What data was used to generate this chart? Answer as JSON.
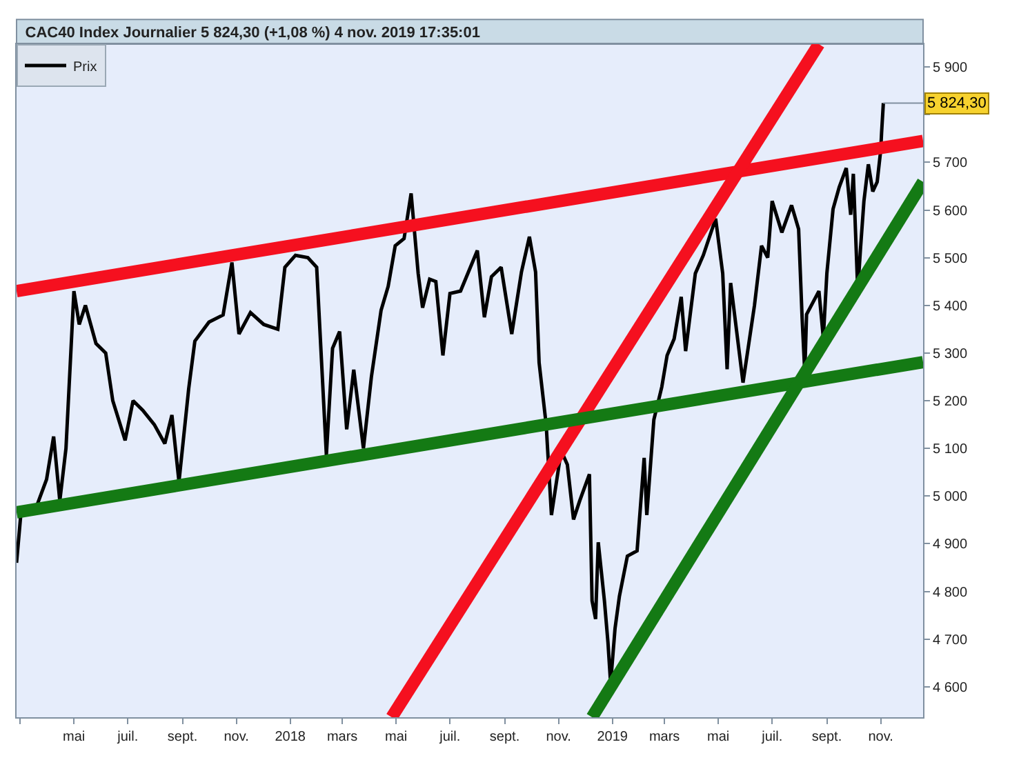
{
  "chart_data": {
    "type": "line",
    "title": "CAC40 Index Journalier 5 824,30 (+1,08 %) 4 nov. 2019 17:35:01",
    "xlim": [
      "2017-02-25",
      "2019-12-19"
    ],
    "ylim": [
      4536,
      5948
    ],
    "xticks": [
      {
        "value": "2017-03-01",
        "label": null
      },
      {
        "value": "2017-05-01",
        "label": "mai"
      },
      {
        "value": "2017-07-01",
        "label": "juil."
      },
      {
        "value": "2017-09-01",
        "label": "sept."
      },
      {
        "value": "2017-11-01",
        "label": "nov."
      },
      {
        "value": "2018-01-01",
        "label": "2018"
      },
      {
        "value": "2018-03-01",
        "label": "mars"
      },
      {
        "value": "2018-05-01",
        "label": "mai"
      },
      {
        "value": "2018-07-01",
        "label": "juil."
      },
      {
        "value": "2018-09-01",
        "label": "sept."
      },
      {
        "value": "2018-11-01",
        "label": "nov."
      },
      {
        "value": "2019-01-01",
        "label": "2019"
      },
      {
        "value": "2019-03-01",
        "label": "mars"
      },
      {
        "value": "2019-05-01",
        "label": "mai"
      },
      {
        "value": "2019-07-01",
        "label": "juil."
      },
      {
        "value": "2019-09-01",
        "label": "sept."
      },
      {
        "value": "2019-11-01",
        "label": "nov."
      }
    ],
    "yticks": [
      {
        "value": 4600,
        "label": "4 600"
      },
      {
        "value": 4700,
        "label": "4 700"
      },
      {
        "value": 4800,
        "label": "4 800"
      },
      {
        "value": 4900,
        "label": "4 900"
      },
      {
        "value": 5000,
        "label": "5 000"
      },
      {
        "value": 5100,
        "label": "5 100"
      },
      {
        "value": 5200,
        "label": "5 200"
      },
      {
        "value": 5300,
        "label": "5 300"
      },
      {
        "value": 5400,
        "label": "5 400"
      },
      {
        "value": 5500,
        "label": "5 500"
      },
      {
        "value": 5600,
        "label": "5 600"
      },
      {
        "value": 5700,
        "label": "5 700"
      },
      {
        "value": 5800,
        "label": null
      },
      {
        "value": 5900,
        "label": "5 900"
      }
    ],
    "grid": false,
    "legend": "top left",
    "marker": "none",
    "line_style": "solid",
    "annotations": [
      {
        "text": "5 824,30",
        "x": "2019-11-04",
        "y": 5824.3
      }
    ],
    "series": [
      {
        "name": "Prix",
        "color": "#000000",
        "x": [
          "2017-02-25",
          "2017-03-02",
          "2017-03-19",
          "2017-03-31",
          "2017-04-08",
          "2017-04-15",
          "2017-04-22",
          "2017-05-01",
          "2017-05-07",
          "2017-05-14",
          "2017-05-26",
          "2017-06-06",
          "2017-06-14",
          "2017-06-28",
          "2017-07-07",
          "2017-07-18",
          "2017-07-31",
          "2017-08-12",
          "2017-08-20",
          "2017-08-28",
          "2017-09-08",
          "2017-09-15",
          "2017-10-01",
          "2017-10-17",
          "2017-10-27",
          "2017-11-04",
          "2017-11-17",
          "2017-12-02",
          "2017-12-18",
          "2017-12-26",
          "2018-01-07",
          "2018-01-21",
          "2018-01-31",
          "2018-02-11",
          "2018-02-18",
          "2018-02-26",
          "2018-03-06",
          "2018-03-14",
          "2018-03-25",
          "2018-04-03",
          "2018-04-14",
          "2018-04-22",
          "2018-04-30",
          "2018-05-10",
          "2018-05-18",
          "2018-05-26",
          "2018-05-31",
          "2018-06-08",
          "2018-06-15",
          "2018-06-23",
          "2018-07-01",
          "2018-07-13",
          "2018-08-01",
          "2018-08-09",
          "2018-08-17",
          "2018-08-28",
          "2018-09-09",
          "2018-09-20",
          "2018-09-29",
          "2018-10-06",
          "2018-10-10",
          "2018-10-18",
          "2018-10-24",
          "2018-11-04",
          "2018-11-11",
          "2018-11-18",
          "2018-11-25",
          "2018-12-06",
          "2018-12-09",
          "2018-12-13",
          "2018-12-16",
          "2018-12-23",
          "2018-12-27",
          "2018-12-30",
          "2019-01-04",
          "2019-01-09",
          "2019-01-18",
          "2019-01-29",
          "2019-02-06",
          "2019-02-09",
          "2019-02-17",
          "2019-02-26",
          "2019-03-04",
          "2019-03-12",
          "2019-03-20",
          "2019-03-25",
          "2019-04-05",
          "2019-04-14",
          "2019-04-28",
          "2019-05-06",
          "2019-05-11",
          "2019-05-15",
          "2019-05-29",
          "2019-06-11",
          "2019-06-19",
          "2019-06-26",
          "2019-07-01",
          "2019-07-12",
          "2019-07-23",
          "2019-07-31",
          "2019-08-04",
          "2019-08-07",
          "2019-08-09",
          "2019-08-23",
          "2019-08-28",
          "2019-09-01",
          "2019-09-08",
          "2019-09-15",
          "2019-09-23",
          "2019-09-28",
          "2019-10-01",
          "2019-10-06",
          "2019-10-09",
          "2019-10-13",
          "2019-10-18",
          "2019-10-23",
          "2019-10-28",
          "2019-11-01",
          "2019-11-02",
          "2019-11-04"
        ],
        "values": [
          4860,
          4965,
          4975,
          5035,
          5125,
          4990,
          5100,
          5430,
          5360,
          5400,
          5320,
          5300,
          5200,
          5117,
          5200,
          5180,
          5150,
          5110,
          5170,
          5030,
          5225,
          5325,
          5365,
          5380,
          5490,
          5340,
          5385,
          5360,
          5350,
          5480,
          5505,
          5500,
          5480,
          5086,
          5310,
          5345,
          5140,
          5265,
          5100,
          5250,
          5390,
          5440,
          5525,
          5540,
          5635,
          5467,
          5395,
          5455,
          5450,
          5295,
          5425,
          5430,
          5515,
          5375,
          5460,
          5480,
          5340,
          5470,
          5544,
          5470,
          5280,
          5150,
          4960,
          5095,
          5066,
          4951,
          4990,
          5046,
          4780,
          4742,
          4903,
          4780,
          4693,
          4607,
          4722,
          4790,
          4874,
          4885,
          5080,
          4960,
          5160,
          5229,
          5295,
          5330,
          5418,
          5304,
          5467,
          5505,
          5582,
          5467,
          5266,
          5447,
          5238,
          5400,
          5525,
          5500,
          5619,
          5553,
          5610,
          5560,
          5372,
          5258,
          5381,
          5430,
          5332,
          5467,
          5602,
          5648,
          5688,
          5590,
          5676,
          5430,
          5516,
          5619,
          5696,
          5639,
          5659,
          5725,
          5762,
          5824.3
        ]
      },
      {
        "color": "#f5101f",
        "x": [
          "2017-02-25",
          "2019-12-19"
        ],
        "values": [
          5430,
          5745
        ]
      },
      {
        "color": "#f5101f",
        "x": [
          "2018-04-26",
          "2019-08-23"
        ],
        "values": [
          4536,
          5948
        ]
      },
      {
        "color": "#147a14",
        "x": [
          "2017-02-25",
          "2019-12-19"
        ],
        "values": [
          4966,
          5281
        ]
      },
      {
        "color": "#147a14",
        "x": [
          "2018-12-09",
          "2019-12-19"
        ],
        "values": [
          4536,
          5659
        ]
      }
    ]
  }
}
